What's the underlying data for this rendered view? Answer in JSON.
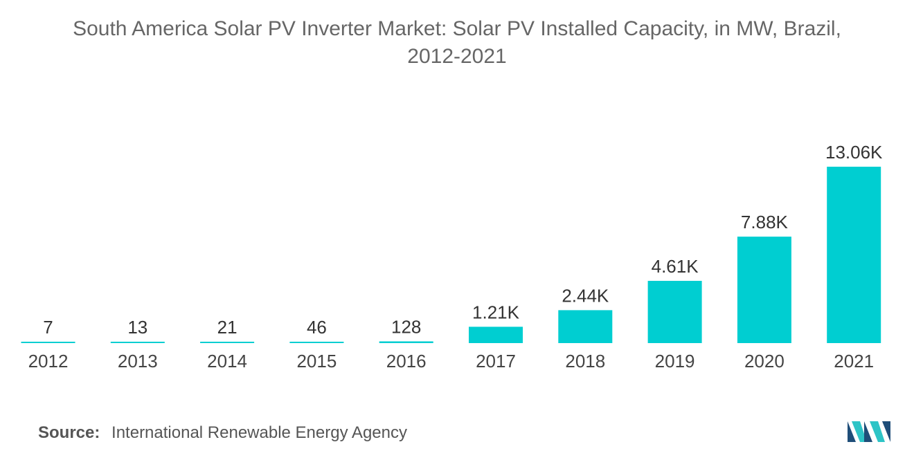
{
  "title": {
    "line1": "South America Solar PV Inverter Market: Solar PV Installed Capacity, in MW, Brazil,",
    "line2": "2012-2021"
  },
  "source": {
    "label": "Source:",
    "text": "International Renewable Energy Agency"
  },
  "logo": {
    "icon": "mordor-intelligence-logo-icon"
  },
  "colors": {
    "bar": "#00CED1",
    "text": "#333333",
    "title": "#666666",
    "logo_dark": "#1F4E79",
    "logo_light": "#2EC4C6"
  },
  "chart_data": {
    "type": "bar",
    "title": "South America Solar PV Inverter Market: Solar PV Installed Capacity, in MW, Brazil, 2012-2021",
    "categories": [
      "2012",
      "2013",
      "2014",
      "2015",
      "2016",
      "2017",
      "2018",
      "2019",
      "2020",
      "2021"
    ],
    "values": [
      7,
      13,
      21,
      46,
      128,
      1210,
      2440,
      4610,
      7880,
      13060
    ],
    "value_labels": [
      "7",
      "13",
      "21",
      "46",
      "128",
      "1.21K",
      "2.44K",
      "4.61K",
      "7.88K",
      "13.06K"
    ],
    "xlabel": "",
    "ylabel": "",
    "ylim": [
      0,
      13060
    ],
    "grid": false,
    "legend": "none"
  }
}
